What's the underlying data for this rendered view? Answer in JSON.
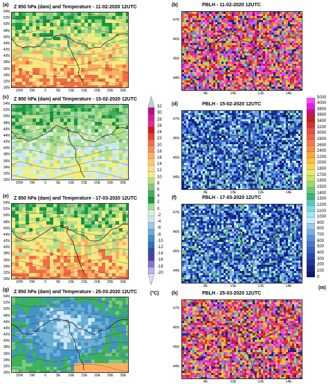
{
  "figure": {
    "left_panels": [
      {
        "tag": "(a)",
        "title": "Z 850 hPa (dam) and Temperature - 11-02-2020 12UTC",
        "scheme": "warm"
      },
      {
        "tag": "(c)",
        "title": "Z 850 hPa (dam) and Temperature - 15-02-2020 12UTC",
        "scheme": "mild"
      },
      {
        "tag": "(e)",
        "title": "Z 850 hPa (dam) and Temperature - 17-03-2020 12UTC",
        "scheme": "warm"
      },
      {
        "tag": "(g)",
        "title": "Z 850 hPa  (dam) and Temperature  - 25-03-2020 12UTC",
        "scheme": "cold"
      }
    ],
    "right_panels": [
      {
        "tag": "(b)",
        "title": "PBLH - 11-02-2020 12UTC",
        "scheme": "high"
      },
      {
        "tag": "(d)",
        "title": "PBLH - 15-02-2020 12UTC",
        "scheme": "low"
      },
      {
        "tag": "(f)",
        "title": "PBLH - 17-03-2020 12UTC",
        "scheme": "low"
      },
      {
        "tag": "(h)",
        "title": "PBLH - 25-03-2020 12UTC",
        "scheme": "high"
      }
    ],
    "left_yticks": [
      "54N",
      "52N",
      "50N",
      "48N",
      "46N",
      "44N",
      "42N",
      "40N",
      "38N",
      "36N",
      "34N",
      "32N",
      "30N"
    ],
    "left_xticks": [
      "10W",
      "5W",
      "0",
      "5E",
      "10E",
      "15E",
      "20E",
      "25E",
      "30E"
    ],
    "right_yticks": [
      "47N",
      "46N",
      "45N",
      "44N"
    ],
    "right_xticks": [
      "8E",
      "10E",
      "12E",
      "14E"
    ]
  },
  "chart_data": {
    "type": "heatmap",
    "temperature_colorbar": {
      "unit": "(°C)",
      "levels": [
        32,
        30,
        28,
        26,
        24,
        22,
        20,
        18,
        16,
        14,
        12,
        10,
        8,
        6,
        4,
        2,
        0,
        -2,
        -4,
        -6,
        -8,
        -10,
        -12,
        -14,
        -16,
        -18,
        -20
      ],
      "colors": [
        "#cccccc",
        "#b0108a",
        "#d21ca6",
        "#e52e8e",
        "#d7191c",
        "#e8432a",
        "#f46d43",
        "#f98e52",
        "#fdae61",
        "#fcc96b",
        "#fee08b",
        "#f2ee7a",
        "#b8e186",
        "#7fc97f",
        "#3db25a",
        "#1a9641",
        "#a6dba0",
        "#d9f0d3",
        "#c6e5f6",
        "#9ecae1",
        "#6baed6",
        "#4292c6",
        "#2f6fbd",
        "#2a4fb0",
        "#4b3fa8",
        "#8a74c8",
        "#c2b0e8",
        "#e3d7f5"
      ]
    },
    "pblh_colorbar": {
      "unit": "(m)",
      "levels": [
        5000,
        4000,
        3800,
        3600,
        3400,
        3200,
        3000,
        2800,
        2600,
        2400,
        2200,
        2000,
        1800,
        1700,
        1600,
        1500,
        1400,
        1300,
        1200,
        1100,
        1000,
        900,
        800,
        700,
        600,
        500,
        400,
        300,
        200,
        100,
        0
      ],
      "colors": [
        "#ff44ff",
        "#e020e0",
        "#c81078",
        "#c02020",
        "#d83030",
        "#e85040",
        "#f06448",
        "#f47c4c",
        "#f89048",
        "#fca83c",
        "#fcc032",
        "#f8d848",
        "#e8e868",
        "#c8e468",
        "#9cd870",
        "#68c878",
        "#40b080",
        "#58c8c0",
        "#7ad8e0",
        "#a6e4f4",
        "#c8eefa",
        "#9ccaf0",
        "#78aee8",
        "#5a92e0",
        "#4478d4",
        "#3260c6",
        "#2448b4",
        "#1c36a0",
        "#14268a",
        "#0c1a6e"
      ]
    }
  }
}
